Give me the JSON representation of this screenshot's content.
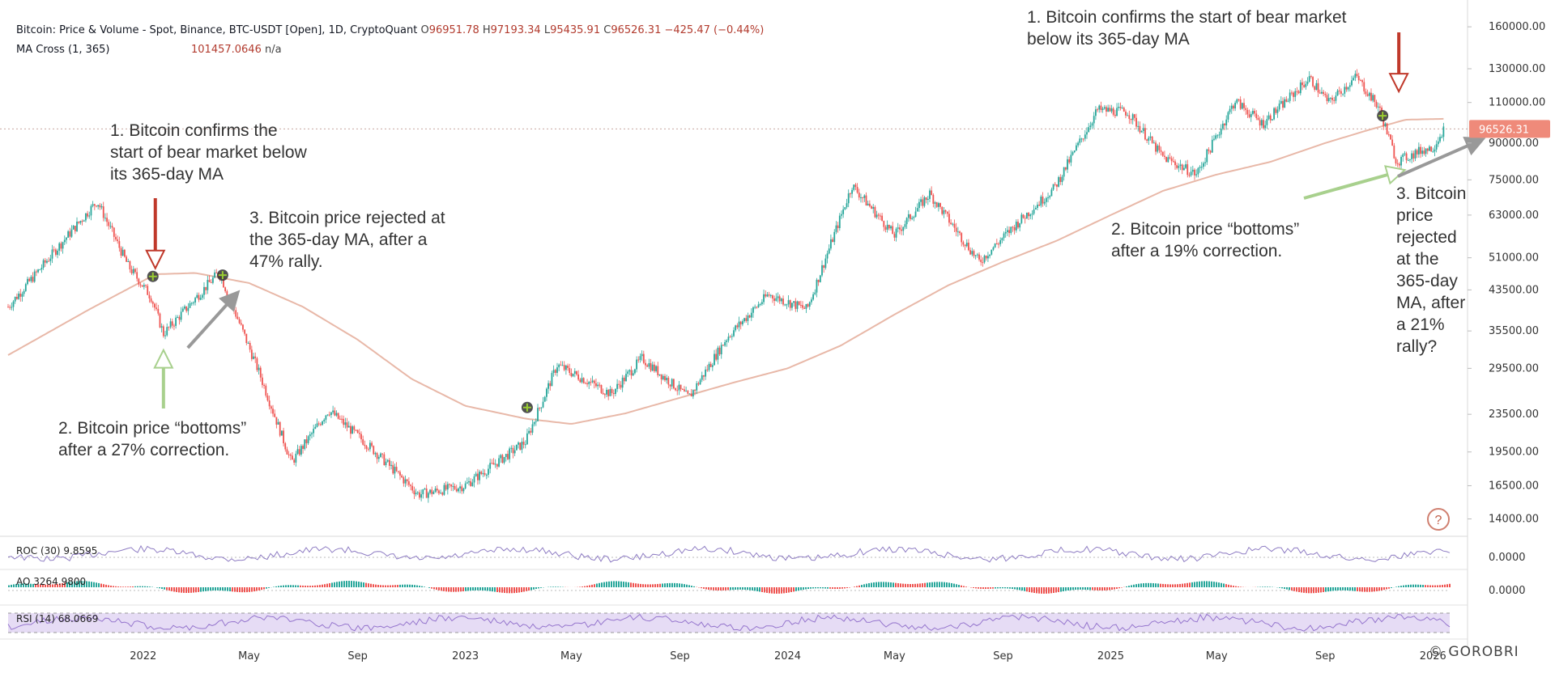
{
  "header": {
    "symbol": "Bitcoin: Price & Volume - Spot, Binance, BTC-USDT [Open], 1D, CryptoQuant",
    "o_label": "O",
    "o_value": "96951.78",
    "h_label": "H",
    "h_value": "97193.34",
    "l_label": "L",
    "l_value": "95435.91",
    "c_label": "C",
    "c_value": "96526.31",
    "change": "−425.47 (−0.44%)",
    "ma_label": "MA Cross (1, 365)",
    "ma_value": "101457.0646",
    "ma_value2": "n/a"
  },
  "annotations": {
    "left_1": "1. Bitcoin confirms the\nstart of bear market below\nits 365-day MA",
    "left_2": "2. Bitcoin price “bottoms”\nafter a 27% correction.",
    "left_3": "3. Bitcoin price rejected at\nthe 365-day MA, after a\n47% rally.",
    "right_1": "1. Bitcoin confirms the start of bear market\nbelow its 365-day MA",
    "right_2": "2. Bitcoin price “bottoms”\nafter a 19% correction.",
    "right_3": "3. Bitcoin\nprice\nrejected\nat the\n365-day\nMA, after\na 21%\nrally?"
  },
  "watermark": "© GOROBRI",
  "help_icon": "question-circle-icon",
  "colors": {
    "up": "#26a69a",
    "down": "#ef5350",
    "ma": "#e8b8a8",
    "last_price_bg": "#ef8a7a",
    "arrow_red": "#c0392b",
    "arrow_green": "#a8d08d",
    "arrow_gray": "#999999",
    "roc": "#8e7cc3",
    "rsi": "#9575cd",
    "rsi_band": "#e6dcf5"
  },
  "chart_data": {
    "type": "line",
    "title": "Bitcoin: Price & Volume - Spot, Binance, BTC-USDT [Open], 1D, CryptoQuant",
    "scale": "log",
    "ylim": [
      13000,
      170000
    ],
    "y_ticks": [
      160000,
      130000,
      110000,
      90000,
      75000,
      63000,
      51000,
      43500,
      35500,
      29500,
      23500,
      19500,
      16500,
      14000
    ],
    "y_tick_labels": [
      "160000.00",
      "130000.00",
      "110000.00",
      "90000.00",
      "75000.00",
      "63000.00",
      "51000.00",
      "43500.00",
      "35500.00",
      "29500.00",
      "23500.00",
      "19500.00",
      "16500.00",
      "14000.00"
    ],
    "x_ticks": [
      "2022",
      "May",
      "Sep",
      "2023",
      "May",
      "Sep",
      "2024",
      "May",
      "Sep",
      "2025",
      "May",
      "Sep",
      "2026"
    ],
    "x_tick_dates": [
      "2022-01-01",
      "2022-05-01",
      "2022-09-01",
      "2023-01-01",
      "2023-05-01",
      "2023-09-01",
      "2024-01-01",
      "2024-05-01",
      "2024-09-01",
      "2025-01-01",
      "2025-05-01",
      "2025-09-01",
      "2026-01-01"
    ],
    "last_price_label": "96526.31",
    "series": [
      {
        "name": "",
        "kind": "price",
        "x": [
          "2021-08-01",
          "2021-09-01",
          "2021-10-01",
          "2021-11-10",
          "2021-12-15",
          "2022-01-10",
          "2022-01-24",
          "2022-03-28",
          "2022-05-12",
          "2022-06-18",
          "2022-07-30",
          "2022-09-15",
          "2022-11-09",
          "2022-12-31",
          "2023-03-10",
          "2023-04-15",
          "2023-06-15",
          "2023-07-20",
          "2023-09-11",
          "2023-10-25",
          "2023-12-10",
          "2024-01-23",
          "2024-03-14",
          "2024-05-01",
          "2024-06-10",
          "2024-08-05",
          "2024-09-15",
          "2024-10-29",
          "2024-12-17",
          "2025-01-20",
          "2025-03-01",
          "2025-04-08",
          "2025-05-22",
          "2025-06-22",
          "2025-08-14",
          "2025-09-05",
          "2025-10-06",
          "2025-11-01",
          "2025-11-21",
          "2025-12-20",
          "2026-01-01",
          "2026-01-13"
        ],
        "values": [
          40000,
          47000,
          55000,
          67500,
          49000,
          42000,
          35000,
          47500,
          29000,
          18500,
          24000,
          20000,
          15800,
          16500,
          20500,
          30000,
          26000,
          31000,
          25500,
          34500,
          42500,
          39500,
          73000,
          57000,
          70000,
          50000,
          60000,
          72000,
          106000,
          105000,
          84000,
          77000,
          111000,
          99000,
          124000,
          110000,
          125000,
          107000,
          82000,
          87000,
          88000,
          96526.31
        ]
      },
      {
        "name": "MA Cross (1, 365)",
        "kind": "ma",
        "x": [
          "2021-08-01",
          "2021-11-01",
          "2022-01-15",
          "2022-03-01",
          "2022-05-01",
          "2022-07-01",
          "2022-09-01",
          "2022-11-01",
          "2023-01-01",
          "2023-03-10",
          "2023-05-01",
          "2023-07-01",
          "2023-09-01",
          "2023-11-01",
          "2024-01-01",
          "2024-03-01",
          "2024-05-01",
          "2024-07-01",
          "2024-09-01",
          "2024-11-01",
          "2025-01-01",
          "2025-03-01",
          "2025-05-01",
          "2025-07-01",
          "2025-09-01",
          "2025-10-20",
          "2025-12-01",
          "2026-01-13"
        ],
        "values": [
          31500,
          39500,
          47000,
          47300,
          45000,
          40000,
          34000,
          28000,
          24500,
          23000,
          22400,
          23600,
          25500,
          27500,
          29500,
          33000,
          38500,
          44500,
          50000,
          55500,
          63000,
          71000,
          77000,
          82000,
          90000,
          96000,
          101000,
          101457.0646
        ]
      }
    ],
    "events": [
      {
        "x": "2022-01-12",
        "value": 46500,
        "label": "1. Bitcoin confirms the start of bear market below its 365-day MA"
      },
      {
        "x": "2022-01-24",
        "value": 35000,
        "label": "2. Bitcoin price “bottoms” after a 27% correction."
      },
      {
        "x": "2022-04-01",
        "value": 46800,
        "label": "3. Bitcoin price rejected at the 365-day MA, after a 47% rally."
      },
      {
        "x": "2023-03-12",
        "value": 24300
      },
      {
        "x": "2025-11-05",
        "value": 103000,
        "label": "1. Bitcoin confirms the start of bear market below its 365-day MA"
      },
      {
        "x": "2025-11-21",
        "value": 82000,
        "label": "2. Bitcoin price “bottoms” after a 19% correction."
      },
      {
        "x": "2026-01-13",
        "value": 96526.31,
        "label": "3. Bitcoin price rejected at the 365-day MA, after a 21% rally?"
      }
    ],
    "sub_panes": [
      {
        "name": "ROC",
        "label": "ROC (30)",
        "value": "9.8595",
        "zero_label": "0.0000"
      },
      {
        "name": "AO",
        "label": "AO",
        "value": "3264.9800",
        "zero_label": "0.0000"
      },
      {
        "name": "RSI",
        "label": "RSI (14)",
        "value": "68.0669",
        "band": [
          30,
          70
        ]
      }
    ]
  }
}
